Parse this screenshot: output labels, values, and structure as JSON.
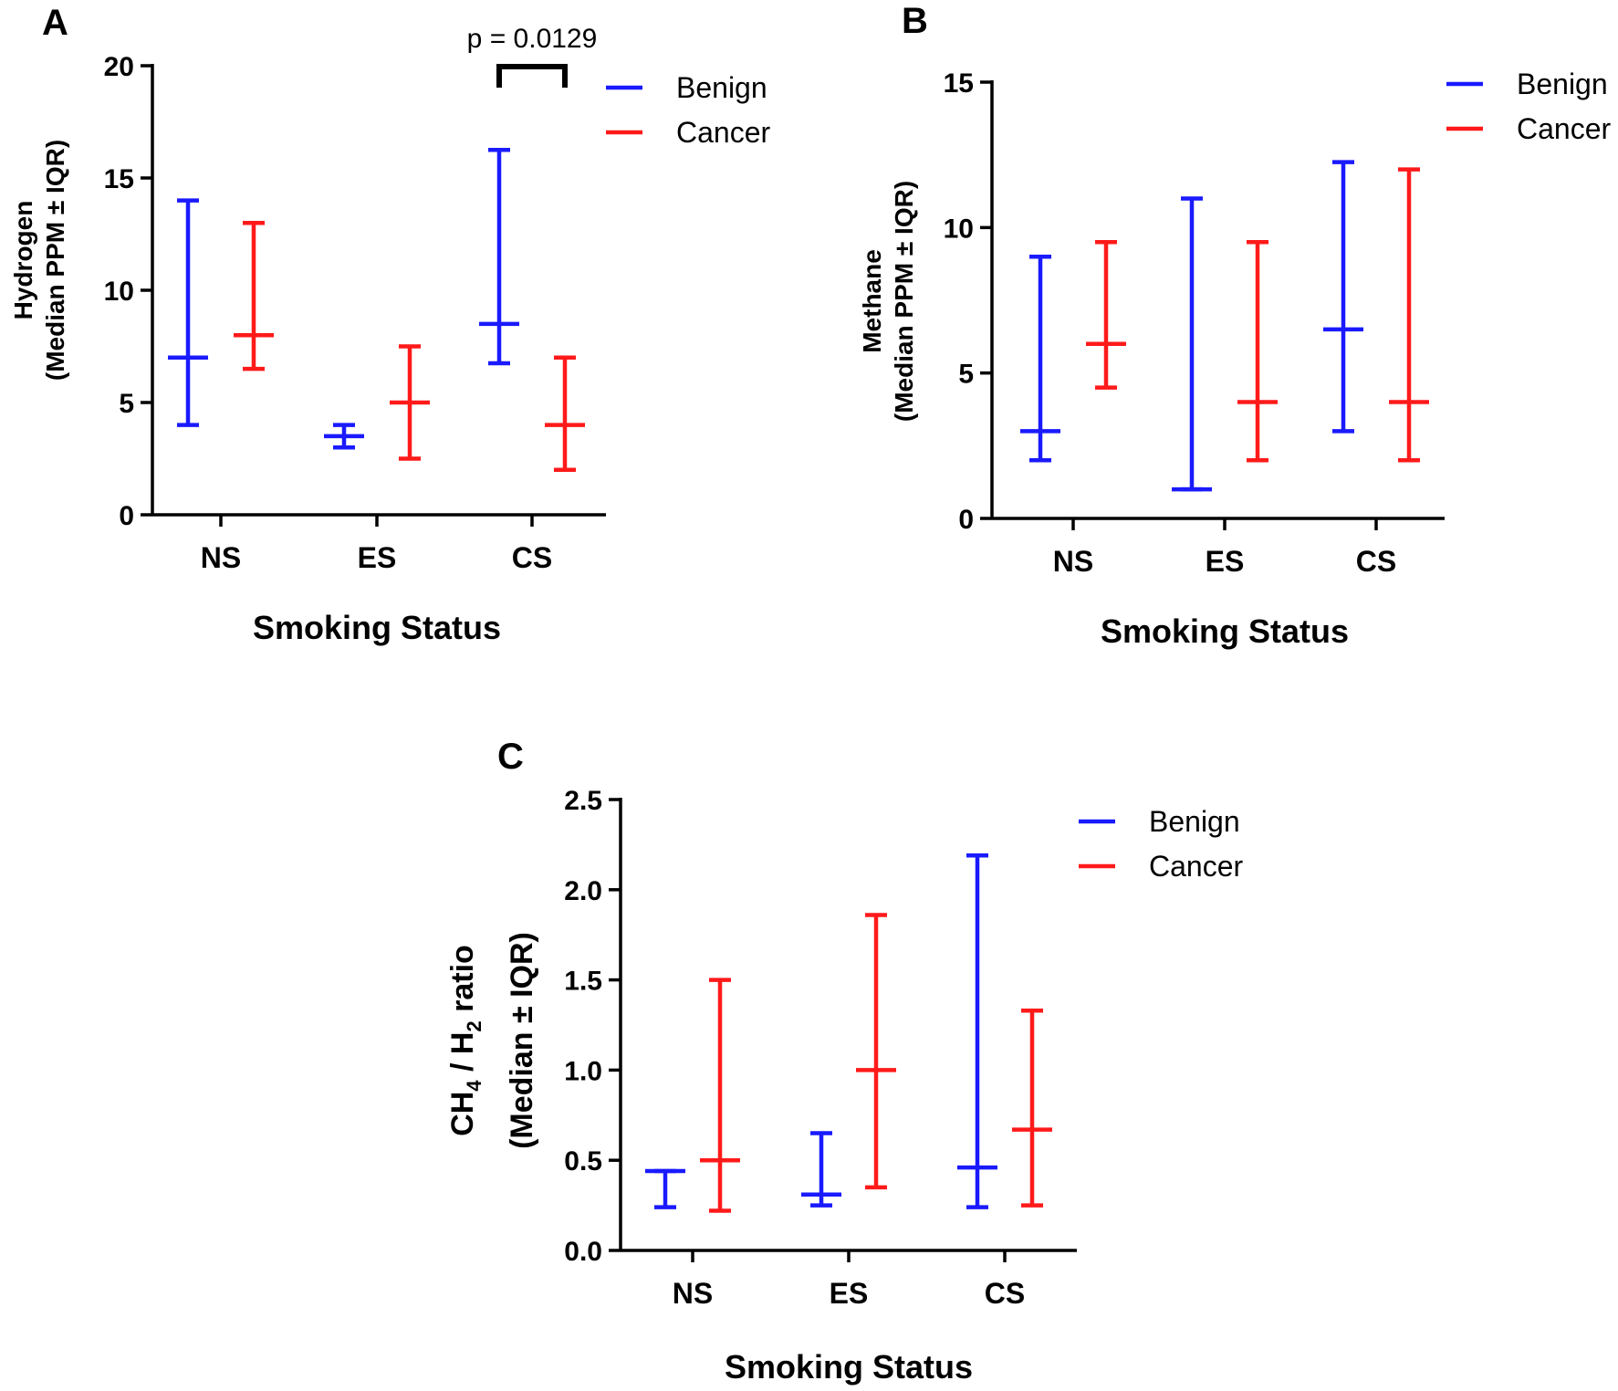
{
  "colors": {
    "benign": "#1a1aff",
    "cancer": "#ff1a1a",
    "axis": "#000000"
  },
  "chart_data": [
    {
      "panel": "A",
      "type": "scatter",
      "categories": [
        "NS",
        "ES",
        "CS"
      ],
      "xlabel": "Smoking Status",
      "ylabel": "Hydrogen",
      "ylabel2": "(Median PPM ± IQR)",
      "ylim": [
        0,
        20
      ],
      "yticks": [
        "0",
        "5",
        "10",
        "15",
        "20"
      ],
      "series": [
        {
          "name": "Benign",
          "median": [
            7,
            3.5,
            8.5
          ],
          "low": [
            4,
            3,
            6.75
          ],
          "high": [
            14,
            4,
            16.25
          ]
        },
        {
          "name": "Cancer",
          "median": [
            8,
            5,
            4
          ],
          "low": [
            6.5,
            2.5,
            2
          ],
          "high": [
            13,
            7.5,
            7
          ]
        }
      ],
      "annotation": {
        "text": "p = 0.0129",
        "category": "CS"
      },
      "legend_position": "top-right",
      "grid": false
    },
    {
      "panel": "B",
      "type": "scatter",
      "categories": [
        "NS",
        "ES",
        "CS"
      ],
      "xlabel": "Smoking Status",
      "ylabel": "Methane",
      "ylabel2": "(Median PPM ± IQR)",
      "ylim": [
        0,
        15
      ],
      "yticks": [
        "0",
        "5",
        "10",
        "15"
      ],
      "series": [
        {
          "name": "Benign",
          "median": [
            3,
            1,
            6.5
          ],
          "low": [
            2,
            1,
            3
          ],
          "high": [
            9,
            11,
            12.25
          ]
        },
        {
          "name": "Cancer",
          "median": [
            6,
            4,
            4
          ],
          "low": [
            4.5,
            2,
            2
          ],
          "high": [
            9.5,
            9.5,
            12
          ]
        }
      ],
      "legend_position": "top-right",
      "grid": false
    },
    {
      "panel": "C",
      "type": "scatter",
      "categories": [
        "NS",
        "ES",
        "CS"
      ],
      "xlabel": "Smoking Status",
      "ylabel": "CH4 / H2 ratio",
      "ylabel2": "(Median ± IQR)",
      "ylim": [
        0,
        2.5
      ],
      "yticks": [
        "0.0",
        "0.5",
        "1.0",
        "1.5",
        "2.0",
        "2.5"
      ],
      "series": [
        {
          "name": "Benign",
          "median": [
            0.44,
            0.31,
            0.46
          ],
          "low": [
            0.24,
            0.25,
            0.24
          ],
          "high": [
            0.44,
            0.65,
            2.19
          ]
        },
        {
          "name": "Cancer",
          "median": [
            0.5,
            1.0,
            0.67
          ],
          "low": [
            0.22,
            0.35,
            0.25
          ],
          "high": [
            1.5,
            1.86,
            1.33
          ]
        }
      ],
      "legend_position": "top-right",
      "grid": false
    }
  ]
}
